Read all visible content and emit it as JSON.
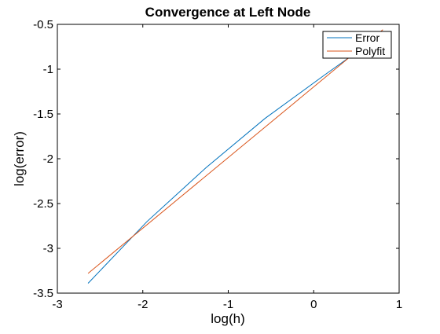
{
  "chart_data": {
    "type": "line",
    "title": "Convergence at Left Node",
    "xlabel": "log(h)",
    "ylabel": "log(error)",
    "xlim": [
      -3,
      1
    ],
    "ylim": [
      -3.5,
      -0.5
    ],
    "xticks": [
      -3,
      -2,
      -1,
      0,
      1
    ],
    "yticks": [
      -3.5,
      -3,
      -2.5,
      -2,
      -1.5,
      -1,
      -0.5
    ],
    "xtick_labels": [
      "-3",
      "-2",
      "-1",
      "0",
      "1"
    ],
    "ytick_labels": [
      "-3.5",
      "-3",
      "-2.5",
      "-2",
      "-1.5",
      "-1",
      "-0.5"
    ],
    "grid": false,
    "legend_position": "top-right",
    "series": [
      {
        "name": "Error",
        "color": "#0072BD",
        "x": [
          -2.64,
          -1.95,
          -1.26,
          -0.57,
          0.12,
          0.81
        ],
        "y": [
          -3.39,
          -2.7,
          -2.1,
          -1.55,
          -1.07,
          -0.6
        ]
      },
      {
        "name": "Polyfit",
        "color": "#D95319",
        "x": [
          -2.64,
          0.81
        ],
        "y": [
          -3.28,
          -0.56
        ]
      }
    ]
  }
}
